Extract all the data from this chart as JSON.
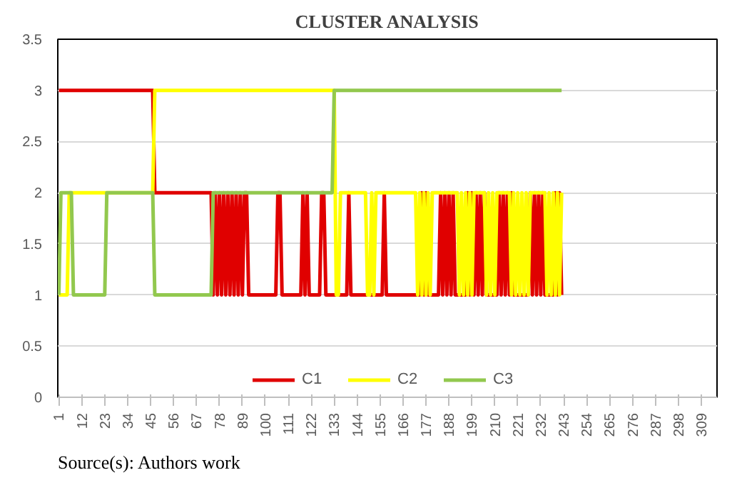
{
  "chart_data": {
    "type": "line",
    "title": "CLUSTER ANALYSIS",
    "x": [
      1,
      2,
      3,
      4,
      5,
      6,
      7,
      8,
      9,
      10,
      11,
      12,
      13,
      14,
      15,
      16,
      17,
      18,
      19,
      20,
      21,
      22,
      23,
      24,
      25,
      26,
      27,
      28,
      29,
      30,
      31,
      32,
      33,
      34,
      35,
      36,
      37,
      38,
      39,
      40,
      41,
      42,
      43,
      44,
      45,
      46,
      47,
      48,
      49,
      50,
      51,
      52,
      53,
      54,
      55,
      56,
      57,
      58,
      59,
      60,
      61,
      62,
      63,
      64,
      65,
      66,
      67,
      68,
      69,
      70,
      71,
      72,
      73,
      74,
      75,
      76,
      77,
      78,
      79,
      80,
      81,
      82,
      83,
      84,
      85,
      86,
      87,
      88,
      89,
      90,
      91,
      92,
      93,
      94,
      95,
      96,
      97,
      98,
      99,
      100,
      101,
      102,
      103,
      104,
      105,
      106,
      107,
      108,
      109,
      110,
      111,
      112,
      113,
      114,
      115,
      116,
      117,
      118,
      119,
      120,
      121,
      122,
      123,
      124,
      125,
      126,
      127,
      128,
      129,
      130,
      131,
      132,
      133,
      134,
      135,
      136,
      137,
      138,
      139,
      140,
      141,
      142,
      143,
      144,
      145,
      146,
      147,
      148,
      149,
      150,
      151,
      152,
      153,
      154,
      155,
      156,
      157,
      158,
      159,
      160,
      161,
      162,
      163,
      164,
      165,
      166,
      167,
      168,
      169,
      170,
      171,
      172,
      173,
      174,
      175,
      176,
      177,
      178,
      179,
      180,
      181,
      182,
      183,
      184,
      185,
      186,
      187,
      188,
      189,
      190,
      191,
      192,
      193,
      194,
      195,
      196,
      197,
      198,
      199,
      200,
      201,
      202,
      203,
      204,
      205,
      206,
      207,
      208,
      209,
      210,
      211,
      212,
      213,
      214,
      215,
      216,
      217,
      218,
      219,
      220,
      221,
      222,
      223,
      224,
      225,
      226,
      227,
      228,
      229,
      230,
      231,
      232,
      233,
      234,
      235,
      236,
      237,
      238,
      239,
      240,
      241,
      242
    ],
    "series": [
      {
        "name": "C1",
        "color": "#e00000",
        "values": [
          3,
          3,
          3,
          3,
          3,
          3,
          3,
          3,
          3,
          3,
          3,
          3,
          3,
          3,
          3,
          3,
          3,
          3,
          3,
          3,
          3,
          3,
          3,
          3,
          3,
          3,
          3,
          3,
          3,
          3,
          3,
          3,
          3,
          3,
          3,
          3,
          3,
          3,
          3,
          3,
          3,
          3,
          3,
          3,
          3,
          3,
          2,
          2,
          2,
          2,
          2,
          2,
          2,
          2,
          2,
          2,
          2,
          2,
          2,
          2,
          2,
          2,
          2,
          2,
          2,
          2,
          2,
          2,
          2,
          2,
          2,
          2,
          2,
          2,
          1,
          2,
          1,
          2,
          1,
          2,
          1,
          2,
          1,
          2,
          1,
          2,
          1,
          2,
          1,
          2,
          2,
          1,
          1,
          1,
          1,
          1,
          1,
          1,
          1,
          1,
          1,
          1,
          1,
          1,
          1,
          2,
          2,
          1,
          1,
          1,
          1,
          1,
          1,
          1,
          1,
          1,
          1,
          2,
          1,
          2,
          1,
          1,
          1,
          1,
          1,
          1,
          2,
          2,
          1,
          1,
          1,
          1,
          1,
          1,
          1,
          1,
          1,
          1,
          1,
          2,
          1,
          1,
          1,
          1,
          1,
          1,
          1,
          1,
          1,
          1,
          1,
          1,
          1,
          1,
          1,
          1,
          2,
          1,
          1,
          1,
          1,
          1,
          1,
          1,
          1,
          1,
          1,
          1,
          1,
          1,
          1,
          1,
          1,
          1,
          2,
          1,
          2,
          1,
          1,
          1,
          1,
          1,
          1,
          2,
          1,
          2,
          1,
          2,
          1,
          2,
          1,
          1,
          1,
          1,
          1,
          1,
          2,
          1,
          2,
          1,
          2,
          1,
          2,
          1,
          2,
          1,
          1,
          1,
          1,
          1,
          1,
          2,
          1,
          2,
          1,
          2,
          1,
          2,
          1,
          1,
          1,
          1,
          1,
          1,
          1,
          1,
          2,
          1,
          2,
          1,
          2,
          1,
          2,
          1,
          1,
          1,
          1,
          1,
          2,
          1,
          2,
          1
        ]
      },
      {
        "name": "C2",
        "color": "#ffff00",
        "values": [
          1,
          1,
          1,
          1,
          1,
          2,
          2,
          2,
          2,
          2,
          2,
          2,
          2,
          2,
          2,
          2,
          2,
          2,
          2,
          2,
          2,
          2,
          2,
          2,
          2,
          2,
          2,
          2,
          2,
          2,
          2,
          2,
          2,
          2,
          2,
          2,
          2,
          2,
          2,
          2,
          2,
          2,
          2,
          2,
          2,
          2,
          3,
          3,
          3,
          3,
          3,
          3,
          3,
          3,
          3,
          3,
          3,
          3,
          3,
          3,
          3,
          3,
          3,
          3,
          3,
          3,
          3,
          3,
          3,
          3,
          3,
          3,
          3,
          3,
          3,
          3,
          3,
          3,
          3,
          3,
          3,
          3,
          3,
          3,
          3,
          3,
          3,
          3,
          3,
          3,
          3,
          3,
          3,
          3,
          3,
          3,
          3,
          3,
          3,
          3,
          3,
          3,
          3,
          3,
          3,
          3,
          3,
          3,
          3,
          3,
          3,
          3,
          3,
          3,
          3,
          3,
          3,
          3,
          3,
          3,
          3,
          3,
          3,
          3,
          3,
          3,
          3,
          3,
          3,
          3,
          3,
          3,
          3,
          1,
          1,
          2,
          2,
          2,
          2,
          2,
          2,
          2,
          2,
          2,
          2,
          2,
          2,
          2,
          1,
          1,
          2,
          1,
          2,
          2,
          2,
          2,
          2,
          2,
          2,
          2,
          2,
          2,
          2,
          2,
          2,
          2,
          2,
          2,
          2,
          2,
          2,
          2,
          1,
          2,
          1,
          2,
          1,
          2,
          1,
          2,
          2,
          2,
          2,
          2,
          2,
          2,
          2,
          2,
          2,
          2,
          2,
          2,
          1,
          2,
          1,
          2,
          1,
          2,
          1,
          2,
          2,
          2,
          2,
          2,
          2,
          1,
          2,
          1,
          2,
          1,
          2,
          2,
          2,
          2,
          2,
          2,
          2,
          1,
          2,
          1,
          2,
          1,
          2,
          1,
          2,
          1,
          2,
          2,
          2,
          2,
          2,
          2,
          2,
          2,
          1,
          2,
          1,
          2,
          1,
          2,
          1,
          2
        ]
      },
      {
        "name": "C3",
        "color": "#92c84e",
        "values": [
          1,
          2,
          2,
          2,
          2,
          2,
          2,
          1,
          1,
          1,
          1,
          1,
          1,
          1,
          1,
          1,
          1,
          1,
          1,
          1,
          1,
          1,
          1,
          2,
          2,
          2,
          2,
          2,
          2,
          2,
          2,
          2,
          2,
          2,
          2,
          2,
          2,
          2,
          2,
          2,
          2,
          2,
          2,
          2,
          2,
          2,
          1,
          1,
          1,
          1,
          1,
          1,
          1,
          1,
          1,
          1,
          1,
          1,
          1,
          1,
          1,
          1,
          1,
          1,
          1,
          1,
          1,
          1,
          1,
          1,
          1,
          1,
          1,
          1,
          2,
          2,
          2,
          2,
          2,
          2,
          2,
          2,
          2,
          2,
          2,
          2,
          2,
          2,
          2,
          2,
          2,
          2,
          2,
          2,
          2,
          2,
          2,
          2,
          2,
          2,
          2,
          2,
          2,
          2,
          2,
          2,
          2,
          2,
          2,
          2,
          2,
          2,
          2,
          2,
          2,
          2,
          2,
          2,
          2,
          2,
          2,
          2,
          2,
          2,
          2,
          2,
          2,
          2,
          2,
          2,
          2,
          2,
          3,
          3,
          3,
          3,
          3,
          3,
          3,
          3,
          3,
          3,
          3,
          3,
          3,
          3,
          3,
          3,
          3,
          3,
          3,
          3,
          3,
          3,
          3,
          3,
          3,
          3,
          3,
          3,
          3,
          3,
          3,
          3,
          3,
          3,
          3,
          3,
          3,
          3,
          3,
          3,
          3,
          3,
          3,
          3,
          3,
          3,
          3,
          3,
          3,
          3,
          3,
          3,
          3,
          3,
          3,
          3,
          3,
          3,
          3,
          3,
          3,
          3,
          3,
          3,
          3,
          3,
          3,
          3,
          3,
          3,
          3,
          3,
          3,
          3,
          3,
          3,
          3,
          3,
          3,
          3,
          3,
          3,
          3,
          3,
          3,
          3,
          3,
          3,
          3,
          3,
          3,
          3,
          3,
          3,
          3,
          3,
          3,
          3,
          3,
          3,
          3,
          3,
          3,
          3,
          3,
          3,
          3,
          3,
          3,
          3
        ]
      }
    ],
    "xlim": [
      0.5,
      316.5
    ],
    "xticks": [
      1,
      12,
      23,
      34,
      45,
      56,
      67,
      78,
      89,
      100,
      111,
      122,
      133,
      144,
      155,
      166,
      177,
      188,
      199,
      210,
      221,
      232,
      243,
      254,
      265,
      276,
      287,
      298,
      309
    ],
    "ylim": [
      0,
      3.5
    ],
    "yticks": [
      0,
      0.5,
      1,
      1.5,
      2,
      2.5,
      3,
      3.5
    ],
    "grid": "y",
    "legend": "bottom",
    "marker": "none",
    "line_style": "solid",
    "annotations": [
      "Source(s): Authors work"
    ]
  }
}
